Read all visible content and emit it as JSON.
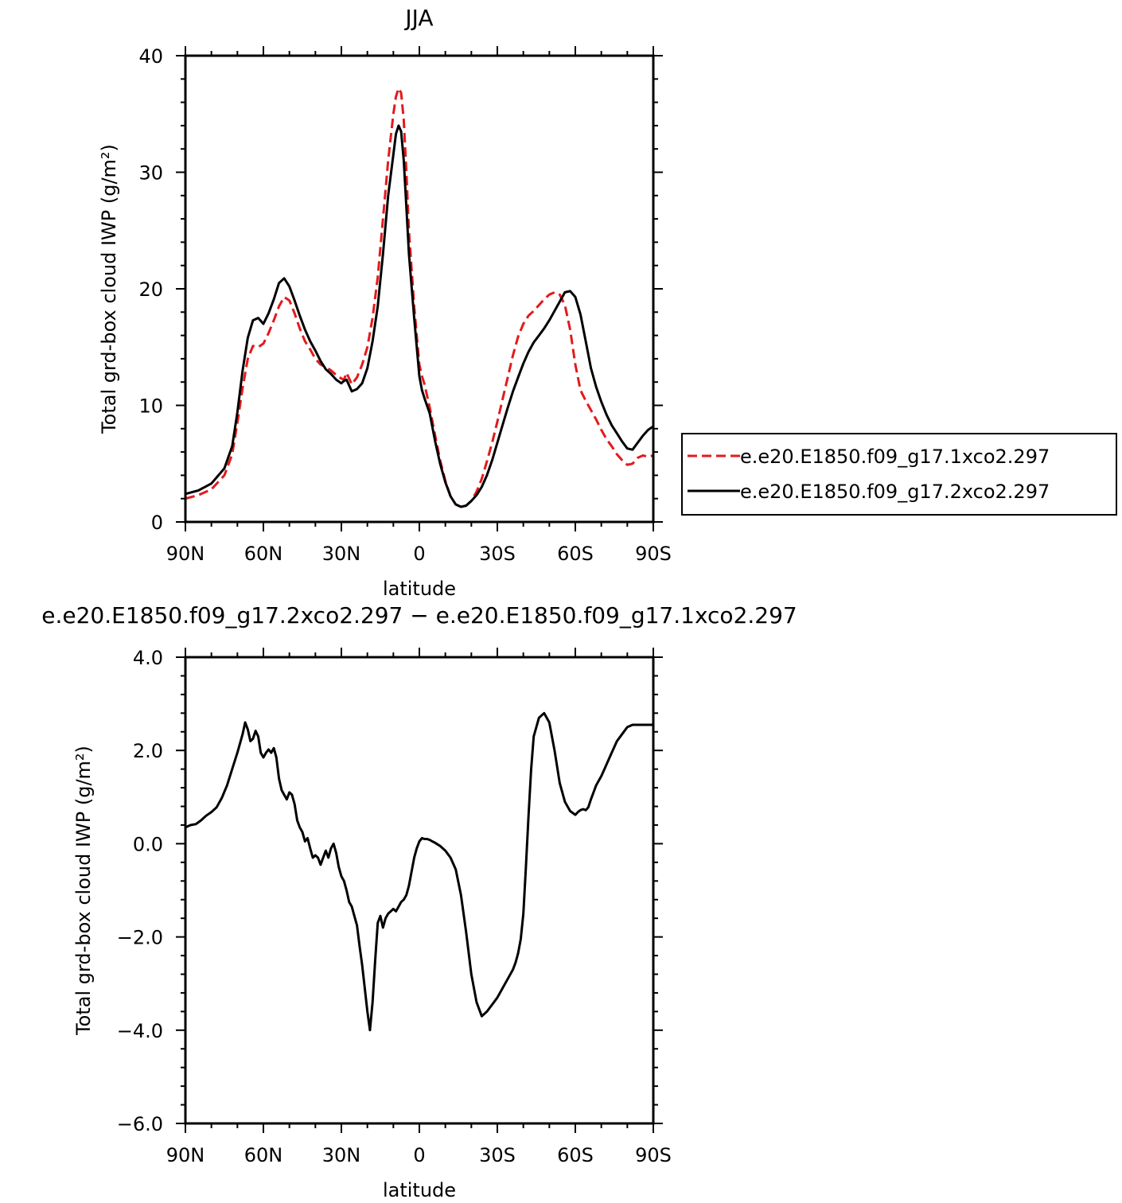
{
  "figure": {
    "top_title": "JJA",
    "bottom_title": "e.e20.E1850.f09_g17.2xco2.297 − e.e20.E1850.f09_g17.1xco2.297"
  },
  "chart_data": [
    {
      "type": "line",
      "title": "JJA",
      "xlabel": "latitude",
      "ylabel": "Total grd-box cloud IWP (g/m²)",
      "xlim": [
        90,
        -90
      ],
      "ylim": [
        0,
        40
      ],
      "x_tick_values": [
        90,
        60,
        30,
        0,
        -30,
        -60,
        -90
      ],
      "x_tick_labels": [
        "90N",
        "60N",
        "30N",
        "0",
        "30S",
        "60S",
        "90S"
      ],
      "y_tick_values": [
        0,
        10,
        20,
        30,
        40
      ],
      "y_tick_labels": [
        "0",
        "10",
        "20",
        "30",
        "40"
      ],
      "legend_position": "right",
      "series": [
        {
          "name": "e.e20.E1850.f09_g17.1xco2.297",
          "color": "#e31a1c",
          "dash": "dashed",
          "x": [
            90,
            85,
            80,
            75,
            72,
            70,
            68,
            66,
            64,
            62,
            60,
            58,
            56,
            54,
            52,
            50,
            48,
            46,
            44,
            42,
            40,
            38,
            36,
            34,
            32,
            30,
            29,
            28,
            26,
            24,
            22,
            20,
            18,
            16,
            14,
            12,
            10,
            9,
            8,
            7,
            6,
            5,
            4,
            2,
            0,
            -1,
            -2,
            -4,
            -6,
            -8,
            -10,
            -12,
            -14,
            -16,
            -18,
            -20,
            -22,
            -24,
            -26,
            -28,
            -30,
            -32,
            -34,
            -36,
            -38,
            -40,
            -42,
            -44,
            -46,
            -48,
            -50,
            -52,
            -54,
            -56,
            -58,
            -60,
            -62,
            -64,
            -66,
            -68,
            -70,
            -72,
            -74,
            -76,
            -78,
            -80,
            -82,
            -84,
            -86,
            -88,
            -90
          ],
          "y": [
            2.0,
            2.3,
            2.8,
            4.0,
            5.8,
            8.5,
            11.5,
            14.0,
            15.1,
            15.0,
            15.3,
            16.2,
            17.3,
            18.5,
            19.3,
            19.0,
            17.9,
            16.6,
            15.5,
            14.8,
            14.0,
            13.5,
            13.3,
            13.0,
            12.6,
            12.3,
            12.2,
            12.8,
            11.8,
            12.4,
            13.5,
            15.0,
            17.5,
            21.0,
            26.0,
            31.0,
            35.0,
            36.5,
            37.2,
            36.8,
            34.5,
            30.0,
            25.0,
            18.5,
            13.5,
            12.5,
            11.8,
            9.8,
            7.5,
            5.3,
            3.5,
            2.2,
            1.5,
            1.3,
            1.4,
            1.8,
            2.6,
            3.7,
            5.2,
            6.8,
            8.6,
            10.5,
            12.4,
            14.3,
            15.9,
            17.0,
            17.7,
            18.1,
            18.6,
            19.1,
            19.5,
            19.7,
            19.5,
            18.6,
            16.5,
            13.5,
            11.3,
            10.4,
            9.6,
            8.8,
            7.9,
            7.1,
            6.5,
            5.8,
            5.3,
            4.9,
            5.0,
            5.5,
            5.7,
            5.6,
            5.7
          ]
        },
        {
          "name": "e.e20.E1850.f09_g17.2xco2.297",
          "color": "#000000",
          "dash": "solid",
          "x": [
            90,
            85,
            80,
            75,
            72,
            70,
            68,
            66,
            64,
            62,
            60,
            58,
            56,
            54,
            52,
            50,
            48,
            46,
            44,
            42,
            40,
            38,
            36,
            34,
            32,
            30,
            29,
            28,
            26,
            24,
            22,
            20,
            18,
            16,
            14,
            12,
            10,
            9,
            8,
            7,
            6,
            5,
            4,
            2,
            0,
            -1,
            -2,
            -4,
            -6,
            -8,
            -10,
            -12,
            -14,
            -16,
            -18,
            -20,
            -22,
            -24,
            -26,
            -28,
            -30,
            -32,
            -34,
            -36,
            -38,
            -40,
            -42,
            -44,
            -46,
            -48,
            -50,
            -52,
            -54,
            -56,
            -58,
            -60,
            -62,
            -64,
            -66,
            -68,
            -70,
            -72,
            -74,
            -76,
            -78,
            -80,
            -82,
            -84,
            -86,
            -88,
            -90
          ],
          "y": [
            2.4,
            2.7,
            3.3,
            4.6,
            6.5,
            9.4,
            13.0,
            15.8,
            17.3,
            17.5,
            17.0,
            17.9,
            19.1,
            20.5,
            20.9,
            20.2,
            19.0,
            17.7,
            16.5,
            15.5,
            14.7,
            13.8,
            13.1,
            12.7,
            12.2,
            11.9,
            12.1,
            12.2,
            11.2,
            11.4,
            11.9,
            13.2,
            15.5,
            18.5,
            23.0,
            28.0,
            31.5,
            33.3,
            34.0,
            33.5,
            31.0,
            27.0,
            23.0,
            17.5,
            12.5,
            11.3,
            10.6,
            9.3,
            7.0,
            5.0,
            3.4,
            2.2,
            1.5,
            1.3,
            1.4,
            1.8,
            2.3,
            3.0,
            4.0,
            5.3,
            6.8,
            8.3,
            9.8,
            11.2,
            12.4,
            13.6,
            14.6,
            15.4,
            16.0,
            16.6,
            17.3,
            18.1,
            18.9,
            19.7,
            19.8,
            19.3,
            17.8,
            15.5,
            13.2,
            11.6,
            10.3,
            9.2,
            8.3,
            7.6,
            6.9,
            6.3,
            6.2,
            6.8,
            7.4,
            7.9,
            8.2
          ]
        }
      ]
    },
    {
      "type": "line",
      "title": "e.e20.E1850.f09_g17.2xco2.297 − e.e20.E1850.f09_g17.1xco2.297",
      "xlabel": "latitude",
      "ylabel": "Total grd-box cloud IWP (g/m²)",
      "xlim": [
        90,
        -90
      ],
      "ylim": [
        -6,
        4
      ],
      "x_tick_values": [
        90,
        60,
        30,
        0,
        -30,
        -60,
        -90
      ],
      "x_tick_labels": [
        "90N",
        "60N",
        "30N",
        "0",
        "30S",
        "60S",
        "90S"
      ],
      "y_tick_values": [
        4,
        2,
        0,
        -2,
        -4,
        -6
      ],
      "y_tick_labels": [
        "4.0",
        "2.0",
        "0.0",
        "−2.0",
        "−4.0",
        "−6.0"
      ],
      "series": [
        {
          "name": "",
          "color": "#000000",
          "dash": "solid",
          "x": [
            90,
            88,
            86,
            84,
            82,
            80,
            78,
            76,
            74,
            72,
            70,
            68,
            67,
            66,
            65,
            64,
            63,
            62,
            61,
            60,
            59,
            58,
            57,
            56,
            55,
            54,
            53,
            52,
            51,
            50,
            49,
            48,
            47,
            46,
            45,
            44,
            43,
            42,
            41,
            40,
            39,
            38,
            37,
            36,
            35,
            34,
            33,
            32,
            31,
            30,
            29,
            28,
            27,
            26,
            25,
            24,
            23,
            22,
            21,
            20,
            19,
            18,
            17,
            16,
            15,
            14,
            13,
            12,
            11,
            10,
            9,
            8,
            7,
            6,
            5,
            4,
            3,
            2,
            1,
            0,
            -1,
            -2,
            -3,
            -4,
            -5,
            -6,
            -8,
            -10,
            -12,
            -14,
            -16,
            -18,
            -20,
            -22,
            -24,
            -26,
            -28,
            -30,
            -32,
            -34,
            -36,
            -37,
            -38,
            -39,
            -40,
            -41,
            -42,
            -43,
            -44,
            -46,
            -48,
            -50,
            -52,
            -54,
            -56,
            -58,
            -60,
            -61,
            -62,
            -63,
            -64,
            -65,
            -66,
            -67,
            -68,
            -70,
            -72,
            -74,
            -76,
            -78,
            -80,
            -82,
            -84,
            -86,
            -88,
            -90
          ],
          "y": [
            0.35,
            0.4,
            0.42,
            0.5,
            0.6,
            0.68,
            0.78,
            0.98,
            1.25,
            1.6,
            1.95,
            2.35,
            2.6,
            2.45,
            2.2,
            2.25,
            2.42,
            2.3,
            1.95,
            1.85,
            1.95,
            2.02,
            1.95,
            2.05,
            1.85,
            1.4,
            1.15,
            1.05,
            0.95,
            1.1,
            1.05,
            0.85,
            0.5,
            0.35,
            0.25,
            0.05,
            0.12,
            -0.1,
            -0.3,
            -0.25,
            -0.3,
            -0.45,
            -0.3,
            -0.15,
            -0.3,
            -0.1,
            0.0,
            -0.2,
            -0.5,
            -0.7,
            -0.8,
            -1.0,
            -1.25,
            -1.35,
            -1.55,
            -1.75,
            -2.2,
            -2.6,
            -3.1,
            -3.6,
            -4.0,
            -3.4,
            -2.5,
            -1.7,
            -1.55,
            -1.8,
            -1.6,
            -1.5,
            -1.45,
            -1.4,
            -1.45,
            -1.35,
            -1.25,
            -1.2,
            -1.1,
            -0.9,
            -0.6,
            -0.3,
            -0.1,
            0.05,
            0.12,
            0.1,
            0.1,
            0.08,
            0.05,
            0.02,
            -0.05,
            -0.15,
            -0.3,
            -0.55,
            -1.1,
            -1.9,
            -2.8,
            -3.4,
            -3.7,
            -3.6,
            -3.45,
            -3.3,
            -3.1,
            -2.9,
            -2.7,
            -2.55,
            -2.35,
            -2.05,
            -1.5,
            -0.5,
            0.6,
            1.6,
            2.3,
            2.7,
            2.8,
            2.6,
            2.0,
            1.3,
            0.9,
            0.7,
            0.62,
            0.68,
            0.72,
            0.74,
            0.72,
            0.78,
            0.95,
            1.1,
            1.25,
            1.45,
            1.7,
            1.95,
            2.2,
            2.35,
            2.5,
            2.55,
            2.55,
            2.55,
            2.55,
            2.55
          ]
        }
      ]
    }
  ]
}
